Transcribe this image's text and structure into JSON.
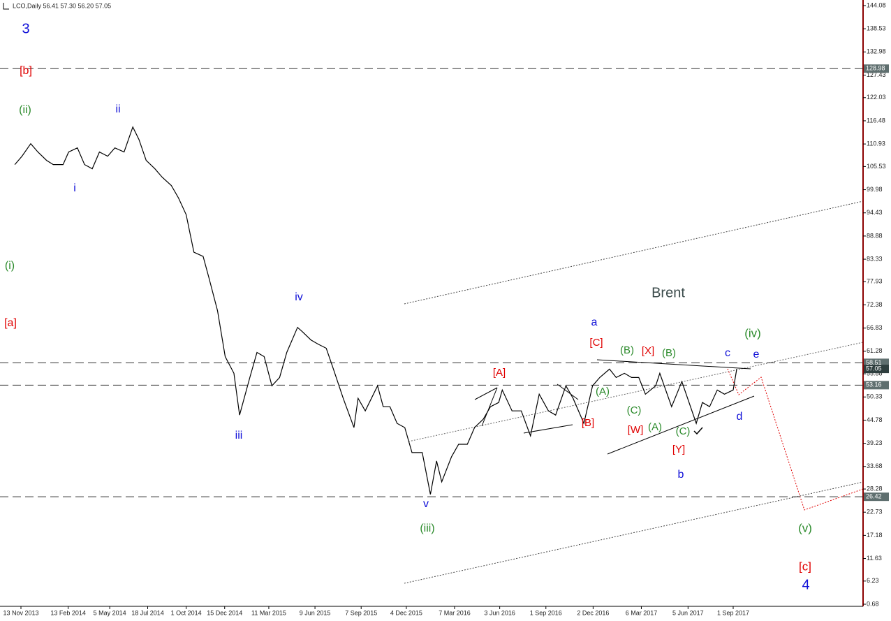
{
  "chart_data": {
    "type": "line",
    "title": "LCO,Daily  56.41 57.30 56.20 57.05",
    "color": "#000000",
    "x": [
      "2013-11-01",
      "2013-11-15",
      "2013-12-02",
      "2013-12-16",
      "2014-01-02",
      "2014-01-15",
      "2014-02-03",
      "2014-02-14",
      "2014-03-03",
      "2014-03-17",
      "2014-04-01",
      "2014-04-15",
      "2014-05-01",
      "2014-05-15",
      "2014-06-02",
      "2014-06-19",
      "2014-07-01",
      "2014-07-15",
      "2014-08-01",
      "2014-08-15",
      "2014-09-02",
      "2014-09-16",
      "2014-10-01",
      "2014-10-16",
      "2014-11-03",
      "2014-11-14",
      "2014-12-01",
      "2014-12-16",
      "2015-01-02",
      "2015-01-13",
      "2015-02-02",
      "2015-02-16",
      "2015-03-02",
      "2015-03-17",
      "2015-04-01",
      "2015-04-15",
      "2015-05-06",
      "2015-05-15",
      "2015-06-01",
      "2015-06-15",
      "2015-07-01",
      "2015-07-15",
      "2015-08-03",
      "2015-08-24",
      "2015-09-01",
      "2015-09-15",
      "2015-10-09",
      "2015-10-20",
      "2015-11-02",
      "2015-11-16",
      "2015-12-01",
      "2015-12-15",
      "2016-01-04",
      "2016-01-20",
      "2016-02-01",
      "2016-02-11",
      "2016-03-01",
      "2016-03-15",
      "2016-04-01",
      "2016-04-15",
      "2016-05-02",
      "2016-05-16",
      "2016-06-01",
      "2016-06-08",
      "2016-06-27",
      "2016-07-15",
      "2016-08-02",
      "2016-08-19",
      "2016-09-06",
      "2016-09-20",
      "2016-10-10",
      "2016-10-24",
      "2016-11-14",
      "2016-12-01",
      "2016-12-15",
      "2017-01-03",
      "2017-01-16",
      "2017-02-01",
      "2017-02-15",
      "2017-03-01",
      "2017-03-14",
      "2017-04-03",
      "2017-04-11",
      "2017-05-04",
      "2017-05-24",
      "2017-06-21",
      "2017-07-03",
      "2017-07-17",
      "2017-08-01",
      "2017-08-15",
      "2017-09-01",
      "2017-09-08"
    ],
    "values": [
      106,
      108,
      111,
      109,
      107,
      106,
      106,
      109,
      110,
      106,
      105,
      109,
      108,
      110,
      109,
      115,
      112,
      107,
      105,
      103,
      101,
      98,
      94,
      85,
      84,
      79,
      71,
      60,
      56,
      46,
      55,
      61,
      60,
      53,
      55,
      61,
      67,
      66,
      64,
      63,
      62,
      57,
      50,
      43,
      50,
      47,
      53,
      48,
      48,
      44,
      43,
      37,
      37,
      27,
      35,
      30,
      36,
      39,
      39,
      43,
      45,
      48,
      49,
      52,
      47,
      47,
      41,
      51,
      47,
      46,
      53,
      50,
      44,
      53,
      55,
      57,
      55,
      56,
      55,
      55,
      51,
      53,
      56,
      48,
      54,
      44,
      49,
      48,
      52,
      51,
      52,
      57.05
    ],
    "ylim": [
      0.68,
      144.08
    ],
    "yticks": [
      144.08,
      138.53,
      132.98,
      127.43,
      122.03,
      116.48,
      110.93,
      105.53,
      99.98,
      94.43,
      88.88,
      83.33,
      77.93,
      72.38,
      66.83,
      61.28,
      55.88,
      50.33,
      44.78,
      39.23,
      33.68,
      28.28,
      22.73,
      17.18,
      11.63,
      6.23,
      0.68
    ],
    "xticks": [
      {
        "value": "2013-11-13",
        "label": "13 Nov 2013"
      },
      {
        "value": "2014-02-13",
        "label": "13 Feb 2014"
      },
      {
        "value": "2014-05-05",
        "label": "5 May 2014"
      },
      {
        "value": "2014-07-18",
        "label": "18 Jul 2014"
      },
      {
        "value": "2014-10-01",
        "label": "1 Oct 2014"
      },
      {
        "value": "2014-12-15",
        "label": "15 Dec 2014"
      },
      {
        "value": "2015-03-11",
        "label": "11 Mar 2015"
      },
      {
        "value": "2015-06-09",
        "label": "9 Jun 2015"
      },
      {
        "value": "2015-09-07",
        "label": "7 Sep 2015"
      },
      {
        "value": "2015-12-04",
        "label": "4 Dec 2015"
      },
      {
        "value": "2016-03-07",
        "label": "7 Mar 2016"
      },
      {
        "value": "2016-06-03",
        "label": "3 Jun 2016"
      },
      {
        "value": "2016-09-01",
        "label": "1 Sep 2016"
      },
      {
        "value": "2016-12-02",
        "label": "2 Dec 2016"
      },
      {
        "value": "2017-03-06",
        "label": "6 Mar 2017"
      },
      {
        "value": "2017-06-05",
        "label": "5 Jun 2017"
      },
      {
        "value": "2017-09-01",
        "label": "1 Sep 2017"
      }
    ],
    "levels": [
      128.98,
      58.51,
      53.16,
      26.42
    ],
    "last_price": 57.05,
    "annotations": [
      {
        "text": "3",
        "color": "#1010d8"
      },
      {
        "text": "[b]",
        "color": "#e00000"
      },
      {
        "text": "(ii)",
        "color": "#2a8a2a"
      },
      {
        "text": "ii",
        "color": "#1010d8"
      },
      {
        "text": "i",
        "color": "#1010d8"
      },
      {
        "text": "(i)",
        "color": "#2a8a2a"
      },
      {
        "text": "[a]",
        "color": "#e00000"
      },
      {
        "text": "iv",
        "color": "#1010d8"
      },
      {
        "text": "iii",
        "color": "#1010d8"
      },
      {
        "text": "v",
        "color": "#1010d8"
      },
      {
        "text": "(iii)",
        "color": "#2a8a2a"
      },
      {
        "text": "Brent",
        "color": "#3a4a4a"
      },
      {
        "text": "a",
        "color": "#1010d8"
      },
      {
        "text": "[C]",
        "color": "#e00000"
      },
      {
        "text": "(B)",
        "color": "#2a8a2a"
      },
      {
        "text": "[X]",
        "color": "#e00000"
      },
      {
        "text": "(B)",
        "color": "#2a8a2a"
      },
      {
        "text": "c",
        "color": "#1010d8"
      },
      {
        "text": "(iv)",
        "color": "#2a8a2a"
      },
      {
        "text": "e",
        "color": "#1010d8"
      },
      {
        "text": "[A]",
        "color": "#e00000"
      },
      {
        "text": "(A)",
        "color": "#2a8a2a"
      },
      {
        "text": "(C)",
        "color": "#2a8a2a"
      },
      {
        "text": "[B]",
        "color": "#e00000"
      },
      {
        "text": "[W]",
        "color": "#e00000"
      },
      {
        "text": "(A)",
        "color": "#2a8a2a"
      },
      {
        "text": "(C)",
        "color": "#2a8a2a"
      },
      {
        "text": "d",
        "color": "#1010d8"
      },
      {
        "text": "[Y]",
        "color": "#e00000"
      },
      {
        "text": "b",
        "color": "#1010d8"
      },
      {
        "text": "(v)",
        "color": "#2a8a2a"
      },
      {
        "text": "[c]",
        "color": "#e00000"
      },
      {
        "text": "4",
        "color": "#1010d8"
      }
    ]
  }
}
